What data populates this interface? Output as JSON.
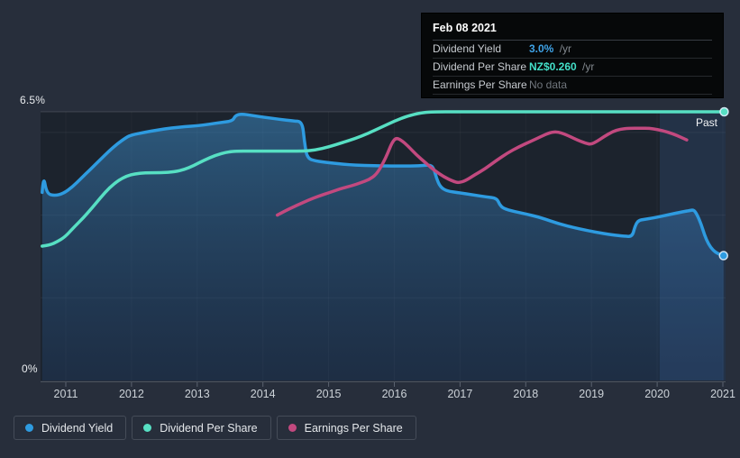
{
  "colors": {
    "background": "#272e3b",
    "plot_bg": "#1c232d",
    "axis_line": "#4d5560",
    "tick": "#5b6370",
    "x_label": "#ccd2d8",
    "blue": "#2e9be0",
    "teal": "#57dfc3",
    "pink": "#c2497f",
    "tooltip_blue": "#3fa3e8",
    "tooltip_teal": "#43dfc8",
    "muted": "#70767d",
    "band": "rgba(86,156,245,0.13)"
  },
  "tooltip": {
    "date": "Feb 08 2021",
    "rows": [
      {
        "label": "Dividend Yield",
        "value": "3.0%",
        "suffix": " /yr",
        "color_key": "tooltip_blue"
      },
      {
        "label": "Dividend Per Share",
        "value": "NZ$0.260",
        "suffix": " /yr",
        "color_key": "tooltip_teal"
      },
      {
        "label": "Earnings Per Share",
        "value": "No data",
        "suffix": "",
        "color_key": "muted"
      }
    ]
  },
  "legend": {
    "items": [
      {
        "label": "Dividend Yield",
        "color": "#2e9be0"
      },
      {
        "label": "Dividend Per Share",
        "color": "#57dfc3"
      },
      {
        "label": "Earnings Per Share",
        "color": "#c2497f"
      }
    ]
  },
  "chart_data": {
    "type": "line",
    "x_axis": {
      "ticks": [
        "2011",
        "2012",
        "2013",
        "2014",
        "2015",
        "2016",
        "2017",
        "2018",
        "2019",
        "2020",
        "2021"
      ],
      "tick_years": [
        2011,
        2012,
        2013,
        2014,
        2015,
        2016,
        2017,
        2018,
        2019,
        2020,
        2021
      ],
      "range": [
        2010.62,
        2021.06
      ]
    },
    "y_axis": {
      "unit": "%",
      "range": [
        0,
        6.5
      ],
      "top_label": "6.5%",
      "bottom_label": "0%",
      "gridlines": [
        2,
        4,
        6,
        6.5
      ]
    },
    "past_band": {
      "from": 2020.04,
      "to": 2021.06,
      "label": "Past"
    },
    "series": [
      {
        "name": "Dividend Yield",
        "unit": "%",
        "color": "#2e9be0",
        "scale": {
          "min": 0,
          "max": 6.5
        },
        "area": true,
        "end_dot": true,
        "points": [
          [
            2010.64,
            4.55
          ],
          [
            2010.66,
            4.97
          ],
          [
            2010.71,
            4.52
          ],
          [
            2010.83,
            4.47
          ],
          [
            2010.96,
            4.52
          ],
          [
            2011.1,
            4.68
          ],
          [
            2011.24,
            4.9
          ],
          [
            2011.37,
            5.1
          ],
          [
            2011.51,
            5.32
          ],
          [
            2011.65,
            5.54
          ],
          [
            2011.78,
            5.72
          ],
          [
            2011.92,
            5.88
          ],
          [
            2012.0,
            5.94
          ],
          [
            2012.19,
            6.0
          ],
          [
            2012.4,
            6.06
          ],
          [
            2012.61,
            6.11
          ],
          [
            2012.81,
            6.14
          ],
          [
            2013.0,
            6.16
          ],
          [
            2013.18,
            6.2
          ],
          [
            2013.36,
            6.24
          ],
          [
            2013.54,
            6.28
          ],
          [
            2013.58,
            6.41
          ],
          [
            2013.67,
            6.45
          ],
          [
            2013.84,
            6.41
          ],
          [
            2014.05,
            6.36
          ],
          [
            2014.25,
            6.32
          ],
          [
            2014.46,
            6.28
          ],
          [
            2014.6,
            6.26
          ],
          [
            2014.63,
            5.8
          ],
          [
            2014.67,
            5.38
          ],
          [
            2014.8,
            5.31
          ],
          [
            2015.0,
            5.27
          ],
          [
            2015.28,
            5.22
          ],
          [
            2015.55,
            5.2
          ],
          [
            2015.83,
            5.19
          ],
          [
            2016.1,
            5.19
          ],
          [
            2016.38,
            5.19
          ],
          [
            2016.54,
            5.22
          ],
          [
            2016.6,
            5.14
          ],
          [
            2016.64,
            4.9
          ],
          [
            2016.7,
            4.68
          ],
          [
            2016.8,
            4.58
          ],
          [
            2016.99,
            4.54
          ],
          [
            2017.2,
            4.49
          ],
          [
            2017.4,
            4.44
          ],
          [
            2017.56,
            4.41
          ],
          [
            2017.6,
            4.26
          ],
          [
            2017.66,
            4.16
          ],
          [
            2017.82,
            4.09
          ],
          [
            2018.02,
            4.02
          ],
          [
            2018.23,
            3.94
          ],
          [
            2018.5,
            3.79
          ],
          [
            2018.78,
            3.68
          ],
          [
            2019.05,
            3.59
          ],
          [
            2019.32,
            3.52
          ],
          [
            2019.5,
            3.49
          ],
          [
            2019.62,
            3.48
          ],
          [
            2019.66,
            3.72
          ],
          [
            2019.71,
            3.87
          ],
          [
            2019.81,
            3.9
          ],
          [
            2019.94,
            3.93
          ],
          [
            2020.15,
            4.0
          ],
          [
            2020.35,
            4.07
          ],
          [
            2020.49,
            4.11
          ],
          [
            2020.56,
            4.13
          ],
          [
            2020.61,
            4.0
          ],
          [
            2020.67,
            3.78
          ],
          [
            2020.72,
            3.52
          ],
          [
            2020.78,
            3.3
          ],
          [
            2020.85,
            3.15
          ],
          [
            2020.92,
            3.07
          ],
          [
            2021.01,
            3.02
          ]
        ]
      },
      {
        "name": "Dividend Per Share",
        "unit": "NZ$",
        "color": "#57dfc3",
        "scale": {
          "min": 0,
          "max": 0.26
        },
        "area": false,
        "end_dot": true,
        "points": [
          [
            2010.64,
            0.13
          ],
          [
            2010.76,
            0.131
          ],
          [
            2010.86,
            0.134
          ],
          [
            2010.99,
            0.139
          ],
          [
            2011.12,
            0.148
          ],
          [
            2011.26,
            0.157
          ],
          [
            2011.4,
            0.167
          ],
          [
            2011.53,
            0.177
          ],
          [
            2011.67,
            0.187
          ],
          [
            2011.81,
            0.194
          ],
          [
            2011.93,
            0.198
          ],
          [
            2012.05,
            0.2
          ],
          [
            2012.2,
            0.201
          ],
          [
            2012.45,
            0.201
          ],
          [
            2012.66,
            0.202
          ],
          [
            2012.8,
            0.204
          ],
          [
            2012.95,
            0.208
          ],
          [
            2013.1,
            0.213
          ],
          [
            2013.28,
            0.218
          ],
          [
            2013.45,
            0.221
          ],
          [
            2013.6,
            0.222
          ],
          [
            2013.8,
            0.222
          ],
          [
            2014.1,
            0.222
          ],
          [
            2014.4,
            0.222
          ],
          [
            2014.62,
            0.222
          ],
          [
            2014.8,
            0.223
          ],
          [
            2015.0,
            0.226
          ],
          [
            2015.2,
            0.23
          ],
          [
            2015.4,
            0.234
          ],
          [
            2015.6,
            0.239
          ],
          [
            2015.8,
            0.245
          ],
          [
            2016.0,
            0.251
          ],
          [
            2016.2,
            0.256
          ],
          [
            2016.4,
            0.259
          ],
          [
            2016.56,
            0.26
          ],
          [
            2017.0,
            0.26
          ],
          [
            2018.0,
            0.26
          ],
          [
            2019.0,
            0.26
          ],
          [
            2020.0,
            0.26
          ],
          [
            2021.02,
            0.26
          ]
        ]
      },
      {
        "name": "Earnings Per Share",
        "unit": "relative (axis not shown)",
        "color": "#c2497f",
        "scale": {
          "min": 0,
          "max": 6.5
        },
        "area": false,
        "end_dot": false,
        "points": [
          [
            2014.22,
            4.0
          ],
          [
            2014.36,
            4.12
          ],
          [
            2014.52,
            4.24
          ],
          [
            2014.69,
            4.36
          ],
          [
            2014.85,
            4.46
          ],
          [
            2015.0,
            4.54
          ],
          [
            2015.18,
            4.64
          ],
          [
            2015.35,
            4.71
          ],
          [
            2015.48,
            4.78
          ],
          [
            2015.62,
            4.86
          ],
          [
            2015.73,
            4.99
          ],
          [
            2015.83,
            5.26
          ],
          [
            2015.9,
            5.5
          ],
          [
            2015.96,
            5.74
          ],
          [
            2016.02,
            5.87
          ],
          [
            2016.1,
            5.82
          ],
          [
            2016.21,
            5.67
          ],
          [
            2016.34,
            5.45
          ],
          [
            2016.48,
            5.26
          ],
          [
            2016.61,
            5.08
          ],
          [
            2016.75,
            4.93
          ],
          [
            2016.89,
            4.82
          ],
          [
            2016.98,
            4.78
          ],
          [
            2017.09,
            4.84
          ],
          [
            2017.22,
            4.97
          ],
          [
            2017.38,
            5.12
          ],
          [
            2017.55,
            5.32
          ],
          [
            2017.72,
            5.5
          ],
          [
            2017.89,
            5.65
          ],
          [
            2018.07,
            5.78
          ],
          [
            2018.23,
            5.9
          ],
          [
            2018.37,
            6.0
          ],
          [
            2018.48,
            6.02
          ],
          [
            2018.61,
            5.95
          ],
          [
            2018.78,
            5.82
          ],
          [
            2018.91,
            5.74
          ],
          [
            2018.99,
            5.71
          ],
          [
            2019.08,
            5.78
          ],
          [
            2019.19,
            5.9
          ],
          [
            2019.32,
            6.02
          ],
          [
            2019.44,
            6.08
          ],
          [
            2019.57,
            6.1
          ],
          [
            2019.75,
            6.1
          ],
          [
            2019.88,
            6.1
          ],
          [
            2020.01,
            6.07
          ],
          [
            2020.16,
            6.01
          ],
          [
            2020.3,
            5.93
          ],
          [
            2020.45,
            5.82
          ]
        ]
      }
    ]
  }
}
